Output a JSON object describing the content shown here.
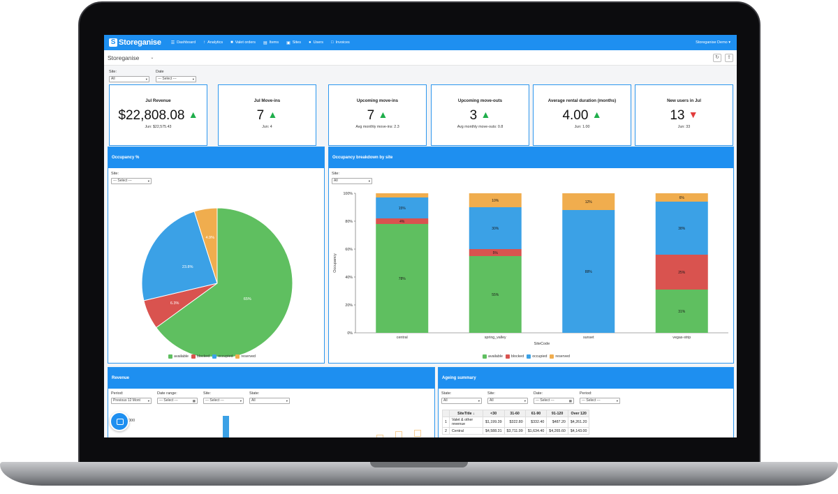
{
  "nav": {
    "brand": "Storeganise",
    "items": [
      {
        "icon": "dashboard-icon",
        "glyph": "☰",
        "label": "Dashboard"
      },
      {
        "icon": "analytics-icon",
        "glyph": "↑",
        "label": "Analytics"
      },
      {
        "icon": "truck-icon",
        "glyph": "■",
        "label": "Valet orders"
      },
      {
        "icon": "items-icon",
        "glyph": "▤",
        "label": "Items"
      },
      {
        "icon": "sites-icon",
        "glyph": "▣",
        "label": "Sites"
      },
      {
        "icon": "users-icon",
        "glyph": "●",
        "label": "Users"
      },
      {
        "icon": "invoices-icon",
        "glyph": "□",
        "label": "Invoices"
      }
    ],
    "account": "Storeganise Demo ▾"
  },
  "subbar": {
    "title": "Storeganise",
    "chevron": "⌄"
  },
  "filters": {
    "site_label": "Site:",
    "site_value": "All",
    "date_label": "Date",
    "date_placeholder": "--- Select ---"
  },
  "cards": [
    {
      "title": "Jul Revenue",
      "value": "$22,808.08",
      "trend": "up",
      "arrow": "▲",
      "sub": "Jun: $22,575.43"
    },
    {
      "title": "Jul Move-ins",
      "value": "7",
      "trend": "up",
      "arrow": "▲",
      "sub": "Jun: 4"
    },
    {
      "title": "Upcoming move-ins",
      "value": "7",
      "trend": "up",
      "arrow": "▲",
      "sub": "Avg monthly move-ins: 2.3"
    },
    {
      "title": "Upcoming move-outs",
      "value": "3",
      "trend": "up",
      "arrow": "▲",
      "sub": "Avg monthly move-outs: 0.8"
    },
    {
      "title": "Average rental duration (months)",
      "value": "4.00",
      "trend": "up",
      "arrow": "▲",
      "sub": "Jun: 1.00"
    },
    {
      "title": "New users in Jul",
      "value": "13",
      "trend": "down",
      "arrow": "▼",
      "sub": "Jun: 33"
    }
  ],
  "colors": {
    "available": "#5fbf60",
    "blocked": "#d9534f",
    "occupied": "#3ba1e6",
    "reserved": "#f0ad4e",
    "accent": "#1e8ff0"
  },
  "occupancy": {
    "title": "Occupancy %",
    "site_label": "Site:",
    "site_placeholder": "--- Select ---"
  },
  "breakdown": {
    "title": "Occupancy breakdown by site",
    "site_label": "Site:",
    "site_value": "All",
    "ylabel": "Occupancy",
    "xlabel": "SiteCode"
  },
  "legend": [
    "available",
    "blocked",
    "occupied",
    "reserved"
  ],
  "chart_data": [
    {
      "type": "pie",
      "title": "Occupancy %",
      "slices": [
        {
          "label": "available",
          "value": 65
        },
        {
          "label": "blocked",
          "value": 6.3
        },
        {
          "label": "occupied",
          "value": 23.8
        },
        {
          "label": "reserved",
          "value": 4.9
        }
      ],
      "slice_labels": [
        "65%",
        "6.3%",
        "23.8%",
        "4.9%"
      ]
    },
    {
      "type": "bar",
      "stacked": true,
      "title": "Occupancy breakdown by site",
      "xlabel": "SiteCode",
      "ylabel": "Occupancy",
      "ylim": [
        0,
        100
      ],
      "yticks": [
        "0%",
        "20%",
        "40%",
        "60%",
        "80%",
        "100%"
      ],
      "categories": [
        "central",
        "spring_valley",
        "sunset",
        "vegas-strip"
      ],
      "series": [
        {
          "name": "available",
          "values": [
            78,
            55,
            0,
            31
          ]
        },
        {
          "name": "blocked",
          "values": [
            4,
            5,
            0,
            25
          ]
        },
        {
          "name": "occupied",
          "values": [
            15,
            30,
            88,
            38
          ]
        },
        {
          "name": "reserved",
          "values": [
            3,
            10,
            12,
            6
          ]
        }
      ],
      "labels": [
        [
          "78%",
          "4%",
          "15%",
          ""
        ],
        [
          "55%",
          "5%",
          "30%",
          "10%"
        ],
        [
          "",
          "",
          "88%",
          "12%"
        ],
        [
          "31%",
          "25%",
          "38%",
          "6%"
        ]
      ]
    },
    {
      "type": "bar",
      "title": "Revenue",
      "visible_ytick": "000",
      "categories": [],
      "values": []
    }
  ],
  "revenue": {
    "title": "Revenue",
    "period_label": "Period:",
    "period_value": "Previous 12 Mont",
    "date_label": "Date range:",
    "date_placeholder": "--- Select ---",
    "site_label": "Site:",
    "site_placeholder": "--- Select ---",
    "state_label": "State:",
    "state_value": "All",
    "ytick": "000"
  },
  "ageing": {
    "title": "Ageing summary",
    "state_label": "State:",
    "state_value": "All",
    "site_label": "Site:",
    "site_value": "All",
    "date_label": "Date:",
    "date_placeholder": "--- Select ---",
    "period_label": "Period:",
    "period_placeholder": "--- Select ---",
    "headers": [
      "SiteTitle ↓",
      "<30",
      "31-60",
      "61-90",
      "91-120",
      "Over 120"
    ],
    "rows": [
      {
        "n": "1",
        "cells": [
          "Valet & other revenue",
          "$1,199.39",
          "$322.80",
          "$332.40",
          "$487.20",
          "$4,261.20"
        ]
      },
      {
        "n": "2",
        "cells": [
          "Central",
          "$4,588.31",
          "$3,711.99",
          "$1,634.40",
          "$4,265.60",
          "$4,143.00"
        ]
      }
    ]
  }
}
